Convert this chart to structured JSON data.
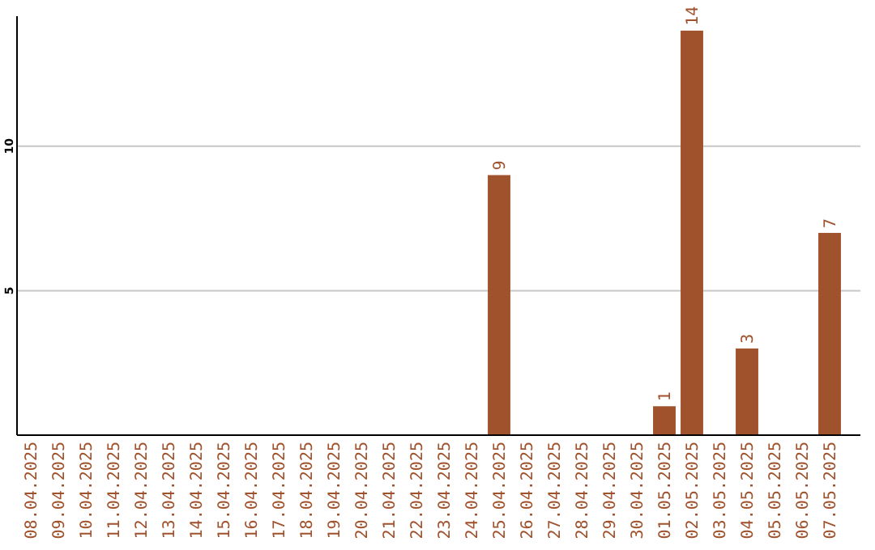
{
  "chart_data": {
    "type": "bar",
    "categories": [
      "08.04.2025",
      "09.04.2025",
      "10.04.2025",
      "11.04.2025",
      "12.04.2025",
      "13.04.2025",
      "14.04.2025",
      "15.04.2025",
      "16.04.2025",
      "17.04.2025",
      "18.04.2025",
      "19.04.2025",
      "20.04.2025",
      "21.04.2025",
      "22.04.2025",
      "23.04.2025",
      "24.04.2025",
      "25.04.2025",
      "26.04.2025",
      "27.04.2025",
      "28.04.2025",
      "29.04.2025",
      "30.04.2025",
      "01.05.2025",
      "02.05.2025",
      "03.05.2025",
      "04.05.2025",
      "05.05.2025",
      "06.05.2025",
      "07.05.2025"
    ],
    "values": [
      0,
      0,
      0,
      0,
      0,
      0,
      0,
      0,
      0,
      0,
      0,
      0,
      0,
      0,
      0,
      0,
      0,
      9,
      0,
      0,
      0,
      0,
      0,
      1,
      14,
      0,
      3,
      0,
      0,
      7
    ],
    "value_labels": [
      null,
      null,
      null,
      null,
      null,
      null,
      null,
      null,
      null,
      null,
      null,
      null,
      null,
      null,
      null,
      null,
      null,
      "9",
      null,
      null,
      null,
      null,
      null,
      "1",
      "14",
      null,
      "3",
      null,
      null,
      "7"
    ],
    "color": "#a0522d",
    "ylim": [
      0,
      14.5
    ],
    "yticks": [
      5,
      10
    ],
    "grid": "y"
  }
}
